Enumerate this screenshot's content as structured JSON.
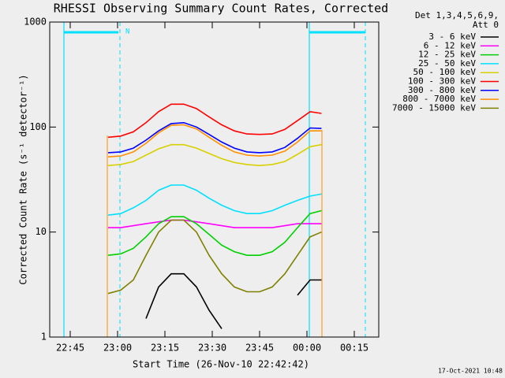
{
  "chart_data": {
    "type": "line",
    "title": "RHESSI Observing Summary Count Rates, Corrected",
    "xlabel": "Start Time (26-Nov-10 22:42:42)",
    "ylabel": "Corrected Count Rate (s⁻¹ detector⁻¹)",
    "legend_header": [
      "Det 1,3,4,5,6,9,",
      "Att 0"
    ],
    "annotation": "N",
    "timestamp": "17-Oct-2021 10:48",
    "log_y": true,
    "legend": "right",
    "xlim": [
      38.5,
      142.75
    ],
    "xticks": [
      {
        "value": 45,
        "label": "22:45"
      },
      {
        "value": 60,
        "label": "23:00"
      },
      {
        "value": 75,
        "label": "23:15"
      },
      {
        "value": 90,
        "label": "23:30"
      },
      {
        "value": 105,
        "label": "23:45"
      },
      {
        "value": 120,
        "label": "00:00"
      },
      {
        "value": 135,
        "label": "00:15"
      }
    ],
    "ylim": [
      1,
      1000
    ],
    "yticks": [
      1,
      10,
      100,
      1000
    ],
    "x": [
      57,
      61,
      65,
      69,
      73,
      77,
      81,
      85,
      89,
      93,
      97,
      101,
      105,
      109,
      113,
      117,
      121,
      124.6
    ],
    "series": [
      {
        "name": "3 - 6 keV",
        "color": "#000000",
        "values": [
          null,
          null,
          null,
          1.5,
          3,
          4,
          4,
          3,
          1.8,
          1.2,
          null,
          null,
          null,
          null,
          null,
          2.5,
          3.5,
          3.5
        ]
      },
      {
        "name": "6 - 12 keV",
        "color": "#ff00ff",
        "values": [
          11,
          11,
          11.5,
          12,
          12.5,
          13,
          13,
          12.5,
          12,
          11.5,
          11,
          11,
          11,
          11,
          11.5,
          12,
          12,
          12
        ]
      },
      {
        "name": "12 - 25 keV",
        "color": "#00d000",
        "values": [
          6,
          6.2,
          7,
          9,
          12,
          14,
          14,
          12,
          9.5,
          7.5,
          6.5,
          6,
          6,
          6.5,
          8,
          11,
          15,
          16
        ]
      },
      {
        "name": "25 - 50 keV",
        "color": "#00e0ff",
        "values": [
          14.5,
          15,
          17,
          20,
          25,
          28,
          28,
          25,
          21,
          18,
          16,
          15,
          15,
          16,
          18,
          20,
          22,
          23
        ]
      },
      {
        "name": "50 - 100 keV",
        "color": "#d8d000",
        "values": [
          43,
          44,
          47,
          54,
          62,
          68,
          68,
          63,
          56,
          50,
          46,
          44,
          43,
          44,
          47,
          55,
          65,
          68
        ]
      },
      {
        "name": "100 - 300 keV",
        "color": "#ff0000",
        "values": [
          80,
          82,
          90,
          110,
          140,
          165,
          165,
          150,
          125,
          105,
          92,
          86,
          85,
          86,
          95,
          115,
          140,
          135
        ]
      },
      {
        "name": "300 - 800 keV",
        "color": "#0000ff",
        "values": [
          57,
          58,
          63,
          75,
          92,
          108,
          110,
          100,
          85,
          72,
          63,
          58,
          57,
          58,
          64,
          78,
          98,
          97
        ]
      },
      {
        "name": "800 - 7000 keV",
        "color": "#ff9000",
        "values": [
          52,
          53,
          58,
          70,
          88,
          104,
          105,
          96,
          80,
          67,
          58,
          54,
          53,
          54,
          59,
          72,
          92,
          92
        ]
      },
      {
        "name": "7000 - 15000 keV",
        "color": "#808000",
        "values": [
          2.6,
          2.8,
          3.5,
          6,
          10,
          13,
          13,
          10,
          6,
          4,
          3,
          2.7,
          2.7,
          3,
          4,
          6,
          9,
          10
        ]
      }
    ]
  }
}
